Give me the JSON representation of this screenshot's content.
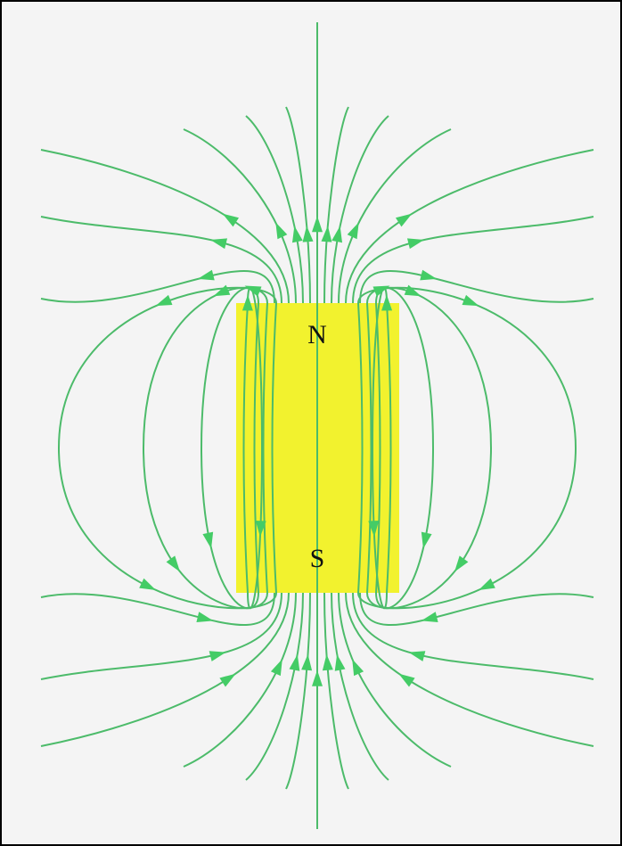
{
  "labels": {
    "north": "N",
    "south": "S"
  }
}
